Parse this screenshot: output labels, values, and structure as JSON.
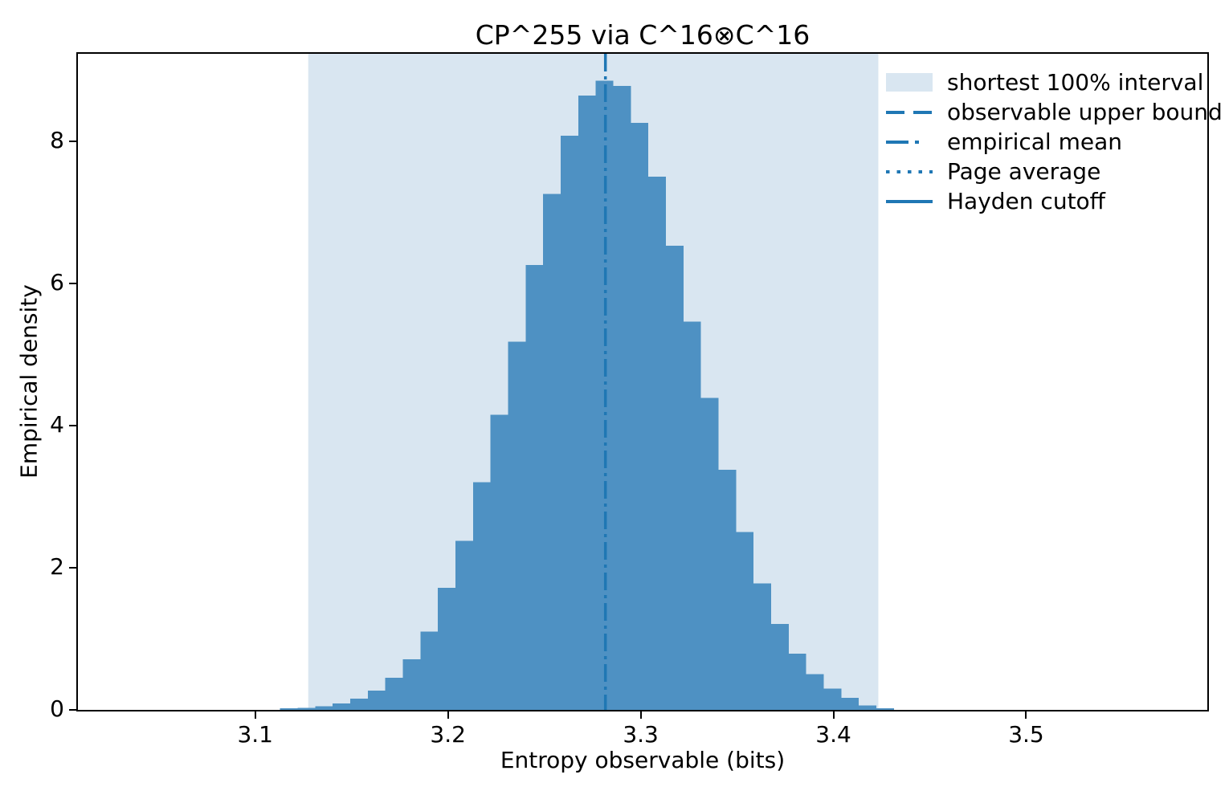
{
  "figure": {
    "title": "CP^255 via C^16⊗C^16",
    "xlabel": "Entropy observable (bits)",
    "ylabel": "Empirical density"
  },
  "colors": {
    "bar": "#4e91c3",
    "band": "#d9e6f1",
    "line": "#1f77b4",
    "axis": "#000000",
    "text": "#000000",
    "background": "#ffffff"
  },
  "legend": {
    "position": "upper right",
    "items": [
      {
        "label": "shortest 100% interval",
        "style": "patch"
      },
      {
        "label": "observable upper bound",
        "style": "dashed"
      },
      {
        "label": "empirical mean",
        "style": "dashdot"
      },
      {
        "label": "Page average",
        "style": "dotted"
      },
      {
        "label": "Hayden cutoff",
        "style": "solid"
      }
    ]
  },
  "chart_data": {
    "type": "bar",
    "subtype": "histogram",
    "title": "CP^255 via C^16⊗C^16",
    "xlabel": "Entropy observable (bits)",
    "ylabel": "Empirical density",
    "xlim": [
      3.008,
      3.594
    ],
    "ylim": [
      0,
      9.23
    ],
    "xtick_values": [
      3.1,
      3.2,
      3.3,
      3.4,
      3.5
    ],
    "xtick_labels": [
      "3.1",
      "3.2",
      "3.3",
      "3.4",
      "3.5"
    ],
    "ytick_values": [
      0,
      2,
      4,
      6,
      8
    ],
    "ytick_labels": [
      "0",
      "2",
      "4",
      "6",
      "8"
    ],
    "grid": false,
    "legend_position": "upper right",
    "histogram": {
      "bin_start": 3.1129,
      "bin_width": 0.0091,
      "densities": [
        0.02,
        0.03,
        0.05,
        0.09,
        0.16,
        0.27,
        0.45,
        0.71,
        1.1,
        1.72,
        2.38,
        3.2,
        4.15,
        5.18,
        6.26,
        7.26,
        8.08,
        8.64,
        8.85,
        8.78,
        8.26,
        7.5,
        6.53,
        5.46,
        4.39,
        3.38,
        2.5,
        1.78,
        1.21,
        0.79,
        0.5,
        0.3,
        0.17,
        0.06,
        0.02
      ]
    },
    "shaded_interval": {
      "label": "shortest 100% interval",
      "from": 3.1275,
      "to": 3.4233
    },
    "vlines": [
      {
        "label": "observable upper bound",
        "linestyle": "dashed",
        "visible_in_view": false
      },
      {
        "label": "empirical mean",
        "linestyle": "dashdot",
        "x": 3.2817,
        "visible_in_view": true
      },
      {
        "label": "Page average",
        "linestyle": "dotted",
        "visible_in_view": false
      },
      {
        "label": "Hayden cutoff",
        "linestyle": "solid",
        "visible_in_view": false
      }
    ]
  }
}
